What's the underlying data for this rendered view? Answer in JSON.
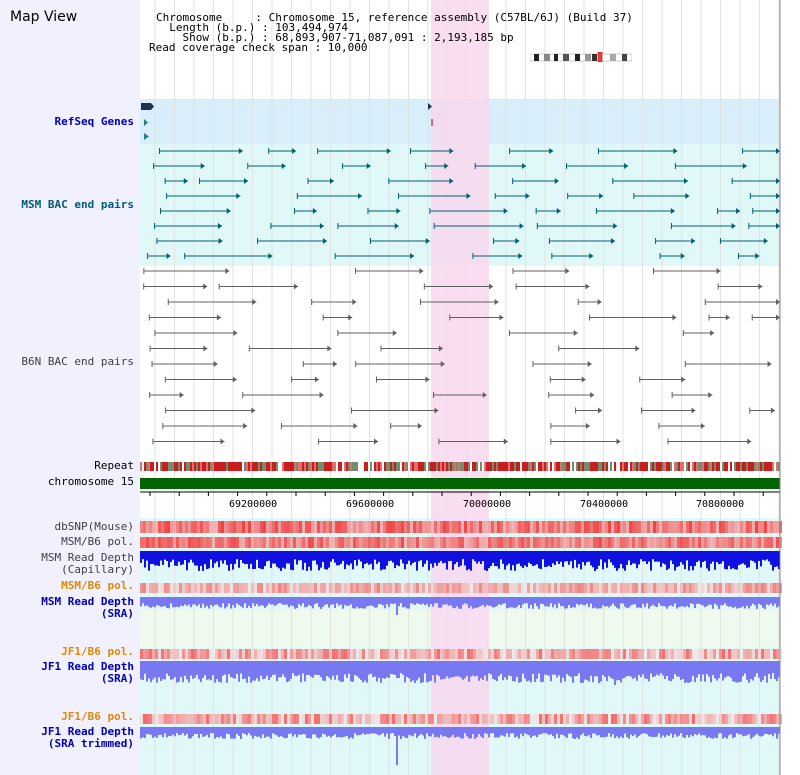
{
  "header": {
    "title": "Map View",
    "lines": [
      "Chromosome     : Chromosome 15, reference assembly (C57BL/6J) (Build 37)",
      "  Length (b.p.) : 103,494,974",
      "    Show (b.p.) : 68,893,907-71,087,091 : 2,193,185 bp",
      "Read coverage check span : 10,000"
    ]
  },
  "tracks": {
    "refseq": "RefSeq Genes",
    "msm_bac": "MSM BAC end pairs",
    "b6n_bac": "B6N BAC end pairs",
    "repeat": "Repeat",
    "chromosome": "chromosome 15",
    "dbsnp": "dbSNP(Mouse)",
    "msm_b6_pol_1": "MSM/B6 pol.",
    "msm_read_cap_1": "MSM Read Depth",
    "msm_read_cap_2": "(Capillary)",
    "msm_b6_pol_2": "MSM/B6 pol.",
    "msm_read_sra_1": "MSM Read Depth",
    "msm_read_sra_2": "(SRA)",
    "jf1_b6_pol_1": "JF1/B6 pol.",
    "jf1_read_sra_1": "JF1 Read Depth",
    "jf1_read_sra_2": "(SRA)",
    "jf1_b6_pol_2": "JF1/B6 pol.",
    "jf1_read_trim_1": "JF1 Read Depth",
    "jf1_read_trim_2": "(SRA trimmed)"
  },
  "axis": {
    "ticks": [
      "69200000",
      "69600000",
      "70000000",
      "70400000",
      "70800000"
    ]
  },
  "colors": {
    "highlight": "#f8d8f0",
    "refseq_bg": "#d8eefa",
    "msm_bg": "#e0f8f8",
    "teal_line": "#006070",
    "gray_line": "#505050",
    "chromosome_green": "#006400",
    "depth_blue": "#1010e0",
    "depth_light": "#7878f0"
  }
}
